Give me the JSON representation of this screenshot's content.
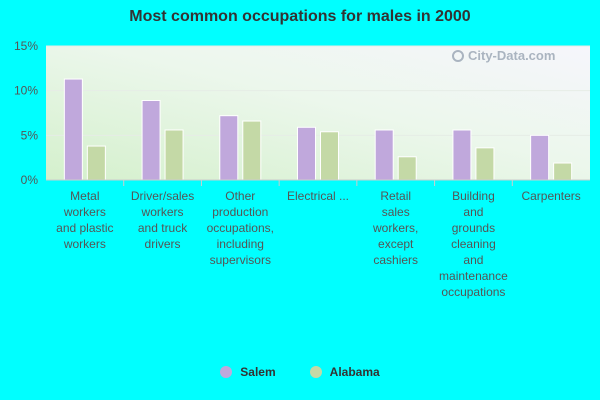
{
  "chart_data": {
    "type": "bar",
    "title": "Most common occupations for males in 2000",
    "categories": [
      "Metal workers and plastic workers",
      "Driver/sales workers and truck drivers",
      "Other production occupations, including supervisors",
      "Electrical ...",
      "Retail sales workers, except cashiers",
      "Building and grounds cleaning and maintenance occupations",
      "Carpenters"
    ],
    "category_lines": [
      [
        "Metal",
        "workers",
        "and plastic",
        "workers"
      ],
      [
        "Driver/sales",
        "workers",
        "and truck",
        "drivers"
      ],
      [
        "Other",
        "production",
        "occupations,",
        "including",
        "supervisors"
      ],
      [
        "Electrical ..."
      ],
      [
        "Retail",
        "sales",
        "workers,",
        "except",
        "cashiers"
      ],
      [
        "Building",
        "and",
        "grounds",
        "cleaning",
        "and",
        "maintenance",
        "occupations"
      ],
      [
        "Carpenters"
      ]
    ],
    "series": [
      {
        "name": "Salem",
        "color": "#c0a8dc",
        "values": [
          11.3,
          8.9,
          7.2,
          5.9,
          5.6,
          5.6,
          5.0
        ]
      },
      {
        "name": "Alabama",
        "color": "#c4d9a6",
        "values": [
          3.8,
          5.6,
          6.6,
          5.4,
          2.6,
          3.6,
          1.9
        ]
      }
    ],
    "yticks": [
      "0%",
      "5%",
      "10%",
      "15%"
    ],
    "ylim": [
      0,
      15
    ],
    "xlabel": "",
    "ylabel": "",
    "legend_position": "bottom"
  },
  "watermark": "City-Data.com"
}
